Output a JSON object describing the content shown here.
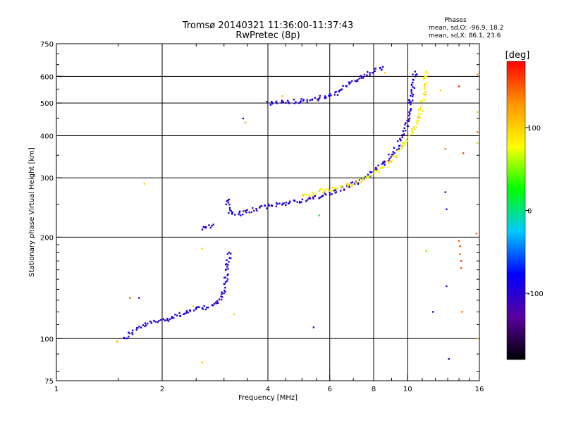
{
  "chart_data": {
    "type": "scatter",
    "title": "Tromsø 20140321 11:36:00-11:37:43",
    "subtitle": "RwPretec (8p)",
    "xlabel": "Frequency [MHz]",
    "ylabel": "Stationary phase Virtual Height [km]",
    "x_scale": "log",
    "y_scale": "log",
    "xlim": [
      1,
      16
    ],
    "ylim": [
      75,
      750
    ],
    "x_ticks": [
      {
        "value": 1,
        "label": "1"
      },
      {
        "value": 2,
        "label": "2"
      },
      {
        "value": 4,
        "label": "4"
      },
      {
        "value": 6,
        "label": "6"
      },
      {
        "value": 8,
        "label": "8"
      },
      {
        "value": 10,
        "label": "10"
      },
      {
        "value": 16,
        "label": "16"
      }
    ],
    "y_ticks": [
      {
        "value": 75,
        "label": "75"
      },
      {
        "value": 100,
        "label": "100"
      },
      {
        "value": 200,
        "label": "200"
      },
      {
        "value": 300,
        "label": "300"
      },
      {
        "value": 400,
        "label": "400"
      },
      {
        "value": 500,
        "label": "500"
      },
      {
        "value": 600,
        "label": "600"
      },
      {
        "value": 750,
        "label": "750"
      }
    ],
    "grid_x": [
      2,
      4,
      6,
      8,
      10
    ],
    "grid_y": [
      100,
      200,
      300,
      400,
      500,
      600
    ],
    "grid": true,
    "phases_box": {
      "title": "Phases",
      "line_o": "mean, sd,O: -96.9, 18.2",
      "line_x": "mean, sd,X:  86.1, 23.6"
    },
    "colorbar": {
      "label": "[deg]",
      "range": [
        -180,
        180
      ],
      "ticks": [
        {
          "value": 100,
          "label": "100"
        },
        {
          "value": 0,
          "label": "0"
        },
        {
          "value": -100,
          "label": "-100"
        }
      ],
      "colors": [
        "#000000",
        "#5a00a0",
        "#0000ff",
        "#00c8ff",
        "#00ff00",
        "#ffff00",
        "#ff9600",
        "#ff0000"
      ]
    },
    "series": [
      {
        "mode": "O",
        "phase_deg": -97,
        "color": "#1e28e6",
        "segments": [
          {
            "x": [
              1.55,
              1.63,
              1.75,
              1.9,
              2.05,
              2.25,
              2.5,
              2.7,
              2.85,
              2.95,
              3.0,
              3.05,
              3.08,
              3.1
            ],
            "y": [
              100,
              104,
              109,
              112,
              114,
              118,
              122,
              124,
              127,
              133,
              142,
              155,
              168,
              180
            ]
          },
          {
            "x": [
              3.06,
              3.1,
              3.2,
              3.4,
              3.7,
              4.0,
              4.4,
              5.0,
              5.5,
              6.0,
              6.5,
              7.0,
              7.5,
              8.0,
              8.5,
              9.0,
              9.5,
              9.8,
              10.1,
              10.3,
              10.5
            ],
            "y": [
              260,
              240,
              232,
              236,
              242,
              247,
              252,
              257,
              262,
              270,
              278,
              288,
              300,
              315,
              330,
              350,
              380,
              410,
              460,
              530,
              620
            ]
          },
          {
            "x": [
              4.0,
              4.3,
              4.7,
              5.2,
              5.8,
              6.2,
              6.6,
              7.0,
              7.5,
              8.0,
              8.5
            ],
            "y": [
              500,
              503,
              505,
              510,
              520,
              530,
              560,
              580,
              600,
              625,
              640
            ]
          },
          {
            "x": [
              2.6,
              2.7,
              2.8
            ],
            "y": [
              213,
              215,
              218
            ]
          }
        ]
      },
      {
        "mode": "X",
        "phase_deg": 86,
        "color": "#dcdc28",
        "segments": [
          {
            "x": [
              5.0,
              5.5,
              6.0,
              6.5,
              7.0,
              7.5,
              8.0,
              8.5,
              9.0,
              9.5,
              10.0,
              10.4,
              10.8,
              11.1,
              11.3
            ],
            "y": [
              265,
              272,
              276,
              281,
              288,
              297,
              308,
              320,
              340,
              362,
              390,
              420,
              460,
              520,
              620
            ]
          }
        ]
      }
    ],
    "outliers": [
      {
        "x": 1.62,
        "y": 132,
        "phase": 150
      },
      {
        "x": 1.72,
        "y": 132,
        "phase": -110
      },
      {
        "x": 1.78,
        "y": 288,
        "phase": 100
      },
      {
        "x": 1.49,
        "y": 98,
        "phase": 120
      },
      {
        "x": 2.45,
        "y": 125,
        "phase": 100
      },
      {
        "x": 2.6,
        "y": 185,
        "phase": 100
      },
      {
        "x": 2.6,
        "y": 85,
        "phase": 110
      },
      {
        "x": 3.2,
        "y": 118,
        "phase": 100
      },
      {
        "x": 3.4,
        "y": 450,
        "phase": -100
      },
      {
        "x": 3.45,
        "y": 438,
        "phase": 120
      },
      {
        "x": 4.4,
        "y": 524,
        "phase": 110
      },
      {
        "x": 5.4,
        "y": 108,
        "phase": -100
      },
      {
        "x": 5.6,
        "y": 232,
        "phase": 20
      },
      {
        "x": 8.6,
        "y": 615,
        "phase": 100
      },
      {
        "x": 11.3,
        "y": 182,
        "phase": 50
      },
      {
        "x": 11.8,
        "y": 120,
        "phase": -100
      },
      {
        "x": 12.4,
        "y": 545,
        "phase": 100
      },
      {
        "x": 12.8,
        "y": 365,
        "phase": 140
      },
      {
        "x": 12.8,
        "y": 272,
        "phase": -110
      },
      {
        "x": 12.9,
        "y": 242,
        "phase": -100
      },
      {
        "x": 12.9,
        "y": 143,
        "phase": -110
      },
      {
        "x": 13.1,
        "y": 87,
        "phase": -110
      },
      {
        "x": 14.0,
        "y": 560,
        "phase": 170
      },
      {
        "x": 14.0,
        "y": 195,
        "phase": 150
      },
      {
        "x": 14.1,
        "y": 188,
        "phase": 160
      },
      {
        "x": 14.1,
        "y": 178,
        "phase": 150
      },
      {
        "x": 14.2,
        "y": 170,
        "phase": 160
      },
      {
        "x": 14.2,
        "y": 162,
        "phase": 150
      },
      {
        "x": 14.3,
        "y": 120,
        "phase": 140
      },
      {
        "x": 14.4,
        "y": 355,
        "phase": 160
      },
      {
        "x": 15.8,
        "y": 608,
        "phase": 130
      },
      {
        "x": 15.8,
        "y": 470,
        "phase": 110
      },
      {
        "x": 15.8,
        "y": 410,
        "phase": 150
      },
      {
        "x": 15.8,
        "y": 380,
        "phase": 60
      },
      {
        "x": 15.7,
        "y": 205,
        "phase": 150
      },
      {
        "x": 15.8,
        "y": 100,
        "phase": 110
      }
    ]
  }
}
